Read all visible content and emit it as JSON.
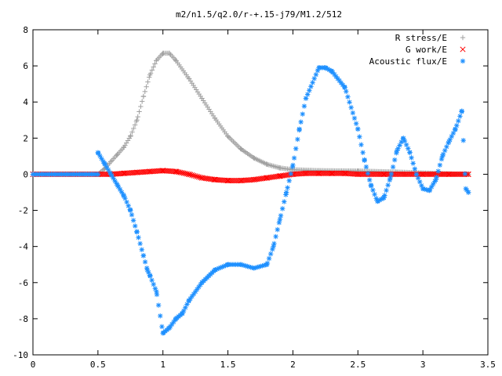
{
  "chart_data": {
    "type": "scatter",
    "title": "m2/n1.5/q2.0/r-+.15-j79/M1.2/512",
    "xlabel": "",
    "ylabel": "",
    "xlim": [
      0,
      3.5
    ],
    "ylim": [
      -10,
      8
    ],
    "xticks": [
      0,
      0.5,
      1,
      1.5,
      2,
      2.5,
      3,
      3.5
    ],
    "yticks": [
      -10,
      -8,
      -6,
      -4,
      -2,
      0,
      2,
      4,
      6,
      8
    ],
    "xtick_labels": [
      "0",
      "0.5",
      "1",
      "1.5",
      "2",
      "2.5",
      "3",
      "3.5"
    ],
    "ytick_labels": [
      "-10",
      "-8",
      "-6",
      "-4",
      "-2",
      "0",
      "2",
      "4",
      "6",
      "8"
    ],
    "grid": false,
    "legend_position": "top-right",
    "series": [
      {
        "name": "R stress/E",
        "marker": "plus",
        "color": "#a0a0a0",
        "x": [
          0.5,
          0.55,
          0.6,
          0.65,
          0.7,
          0.75,
          0.8,
          0.85,
          0.9,
          0.95,
          1.0,
          1.05,
          1.1,
          1.2,
          1.3,
          1.4,
          1.5,
          1.6,
          1.7,
          1.8,
          1.9,
          2.0,
          2.2,
          2.5,
          2.8,
          3.1,
          3.3,
          3.35
        ],
        "y": [
          0.0,
          0.3,
          0.7,
          1.1,
          1.5,
          2.1,
          3.0,
          4.3,
          5.5,
          6.3,
          6.7,
          6.7,
          6.3,
          5.3,
          4.2,
          3.1,
          2.1,
          1.4,
          0.9,
          0.55,
          0.35,
          0.25,
          0.2,
          0.18,
          0.12,
          0.05,
          0.0,
          0.0
        ]
      },
      {
        "name": "G work/E",
        "marker": "cross",
        "color": "#ff0000",
        "x": [
          0.0,
          0.5,
          0.6,
          0.7,
          0.8,
          0.9,
          1.0,
          1.1,
          1.2,
          1.3,
          1.4,
          1.5,
          1.6,
          1.7,
          1.8,
          1.9,
          2.0,
          2.1,
          2.2,
          2.3,
          2.4,
          2.5,
          2.7,
          3.0,
          3.2,
          3.35
        ],
        "y": [
          0.0,
          0.0,
          0.0,
          0.05,
          0.1,
          0.15,
          0.2,
          0.15,
          0.0,
          -0.2,
          -0.3,
          -0.35,
          -0.35,
          -0.3,
          -0.2,
          -0.1,
          0.0,
          0.05,
          0.05,
          0.05,
          0.05,
          0.0,
          0.0,
          0.0,
          0.0,
          0.0
        ]
      },
      {
        "name": "Acoustic flux/E",
        "marker": "star",
        "color": "#1e90ff",
        "x": [
          0.0,
          0.5,
          0.5,
          0.55,
          0.6,
          0.65,
          0.7,
          0.75,
          0.8,
          0.85,
          0.88,
          0.9,
          0.95,
          1.0,
          1.05,
          1.1,
          1.15,
          1.2,
          1.3,
          1.4,
          1.5,
          1.6,
          1.7,
          1.8,
          1.85,
          1.9,
          1.95,
          2.0,
          2.05,
          2.1,
          2.2,
          2.25,
          2.3,
          2.4,
          2.5,
          2.55,
          2.6,
          2.65,
          2.7,
          2.75,
          2.8,
          2.85,
          2.9,
          2.95,
          3.0,
          3.05,
          3.1,
          3.15,
          3.2,
          3.25,
          3.3,
          3.33,
          3.35
        ],
        "y": [
          0.0,
          0.0,
          1.2,
          0.6,
          0.0,
          -0.6,
          -1.2,
          -2.0,
          -3.2,
          -4.5,
          -5.3,
          -5.6,
          -6.5,
          -8.8,
          -8.5,
          -8.0,
          -7.7,
          -7.0,
          -6.0,
          -5.3,
          -5.0,
          -5.0,
          -5.2,
          -5.0,
          -4.0,
          -2.5,
          -1.0,
          0.5,
          2.5,
          4.2,
          5.9,
          5.9,
          5.7,
          4.8,
          2.5,
          0.8,
          -0.6,
          -1.5,
          -1.3,
          -0.2,
          1.3,
          2.0,
          1.2,
          0.0,
          -0.8,
          -0.9,
          -0.3,
          1.0,
          1.8,
          2.5,
          3.5,
          -0.8,
          -1.0
        ]
      }
    ]
  }
}
